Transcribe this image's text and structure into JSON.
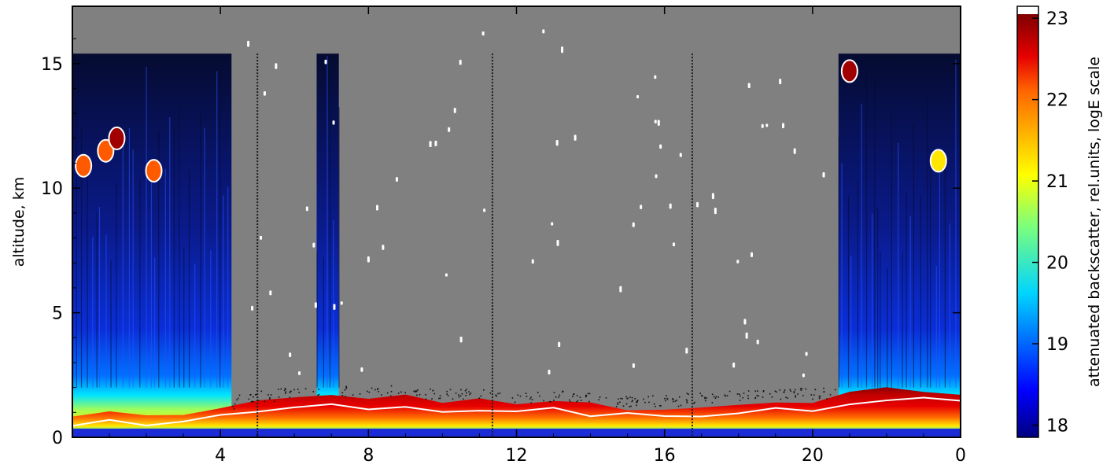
{
  "chart_data": {
    "type": "heatmap",
    "title": "",
    "xlabel": "",
    "ylabel": "altitude, km",
    "x_ticks": [
      4,
      8,
      12,
      16,
      20,
      0
    ],
    "xlim": [
      0,
      24
    ],
    "y_ticks": [
      0,
      5,
      10,
      15
    ],
    "ylim": [
      0,
      17.3
    ],
    "colorbar": {
      "label": "attenuated backscatter, rel.units, logE scale",
      "ticks": [
        18,
        19,
        20,
        21,
        22,
        23
      ],
      "range": [
        17.85,
        23.05
      ],
      "colormap": "jet",
      "over_color": "#ffffff"
    },
    "no_data_color": "#808080",
    "boundary_layer_top_km": [
      {
        "x": 0,
        "y": 0.9
      },
      {
        "x": 1,
        "y": 1.0
      },
      {
        "x": 2,
        "y": 0.9
      },
      {
        "x": 3,
        "y": 1.0
      },
      {
        "x": 4,
        "y": 1.1
      },
      {
        "x": 5,
        "y": 1.4
      },
      {
        "x": 6,
        "y": 1.5
      },
      {
        "x": 7,
        "y": 1.6
      },
      {
        "x": 8,
        "y": 1.5
      },
      {
        "x": 9,
        "y": 1.6
      },
      {
        "x": 10,
        "y": 1.5
      },
      {
        "x": 11,
        "y": 1.5
      },
      {
        "x": 12,
        "y": 1.3
      },
      {
        "x": 13,
        "y": 1.4
      },
      {
        "x": 14,
        "y": 1.3
      },
      {
        "x": 15,
        "y": 1.2
      },
      {
        "x": 16,
        "y": 1.2
      },
      {
        "x": 17,
        "y": 1.3
      },
      {
        "x": 18,
        "y": 1.4
      },
      {
        "x": 19,
        "y": 1.5
      },
      {
        "x": 20,
        "y": 1.5
      },
      {
        "x": 21,
        "y": 1.8
      },
      {
        "x": 22,
        "y": 1.9
      },
      {
        "x": 23,
        "y": 1.9
      },
      {
        "x": 24,
        "y": 1.8
      }
    ],
    "cirrus_clouds": [
      {
        "x": 0.3,
        "y": 10.9,
        "value": 22.2
      },
      {
        "x": 0.9,
        "y": 11.5,
        "value": 22.5
      },
      {
        "x": 1.2,
        "y": 12.0,
        "value": 23.0
      },
      {
        "x": 2.2,
        "y": 10.7,
        "value": 21.8
      },
      {
        "x": 21.0,
        "y": 14.7,
        "value": 23.0
      },
      {
        "x": 23.4,
        "y": 11.1,
        "value": 21.5
      }
    ],
    "clear_sky_intervals_h": [
      [
        4.3,
        6.7
      ],
      [
        7.2,
        20.6
      ]
    ]
  }
}
